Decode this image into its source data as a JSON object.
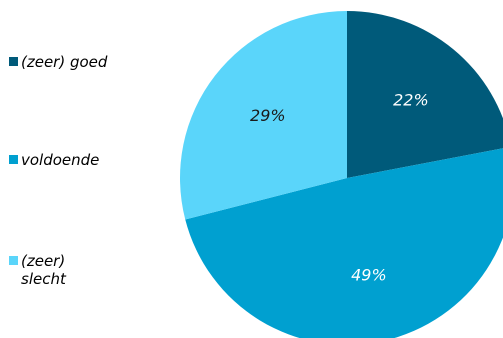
{
  "chart_data": {
    "type": "pie",
    "title": "",
    "slices": [
      {
        "label": "(zeer) goed",
        "value": 22,
        "value_label": "22%",
        "color": "#005a7a",
        "label_color": "#ffffff"
      },
      {
        "label": "voldoende",
        "value": 49,
        "value_label": "49%",
        "color": "#00a0d0",
        "label_color": "#ffffff"
      },
      {
        "label": "(zeer) slecht",
        "value": 29,
        "value_label": "29%",
        "color": "#5ad5fa",
        "label_color": "#1a1a1a"
      }
    ],
    "legend": {
      "placement": "left",
      "items": [
        {
          "label": "(zeer) goed",
          "color": "#005a7a"
        },
        {
          "label": "voldoende",
          "color": "#00a0d0"
        },
        {
          "label": "(zeer) slecht",
          "color": "#5ad5fa"
        }
      ]
    }
  }
}
